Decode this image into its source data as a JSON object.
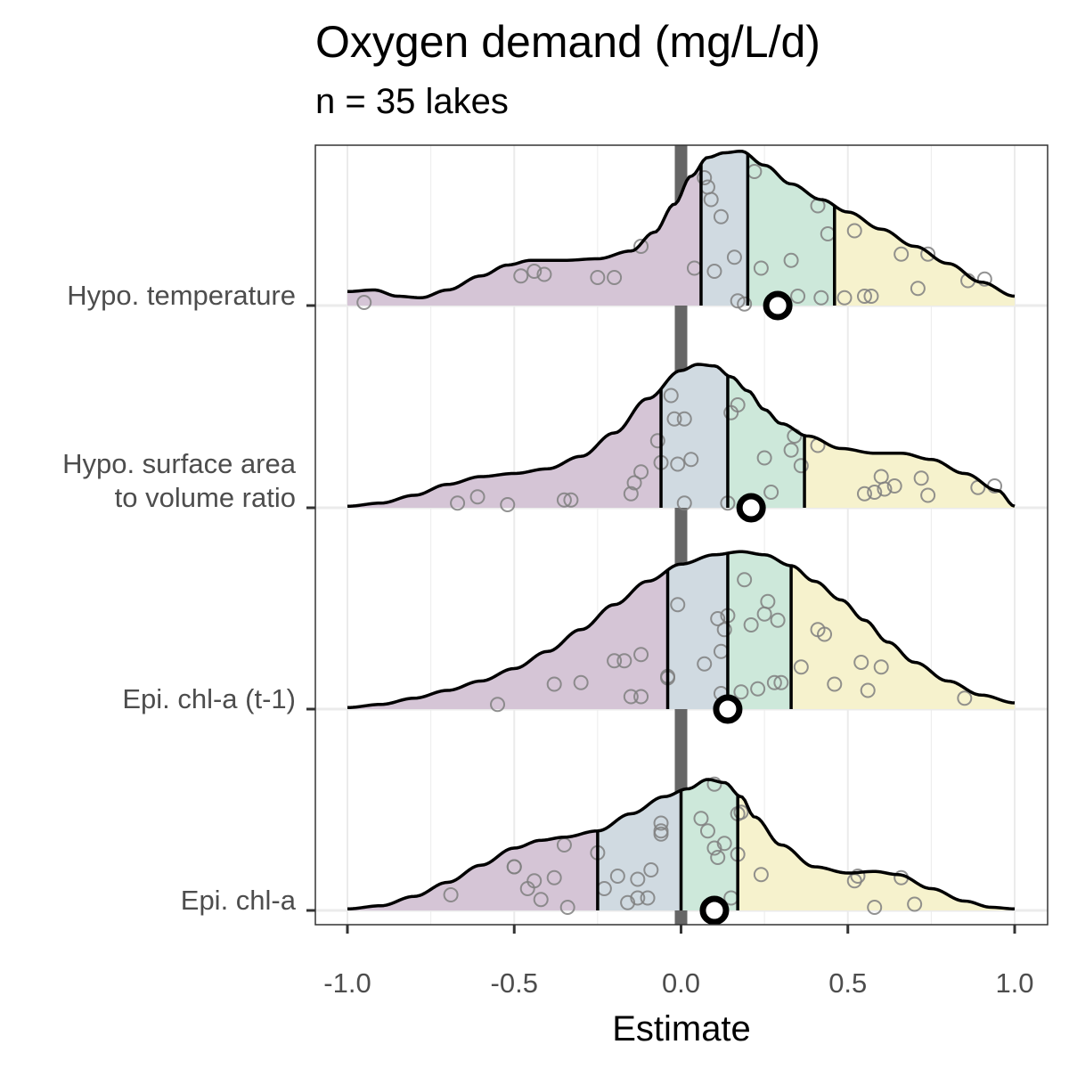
{
  "chart_data": {
    "type": "ridgeline-density",
    "title": "Oxygen demand (mg/L/d)",
    "subtitle": "n = 35 lakes",
    "xlabel": "Estimate",
    "ylabel": "",
    "xlim": [
      -1.0,
      1.0
    ],
    "x_ticks": [
      "-1.0",
      "-0.5",
      "0.0",
      "0.5",
      "1.0"
    ],
    "x_tick_values": [
      -1.0,
      -0.5,
      0.0,
      0.5,
      1.0
    ],
    "reference_line_x": 0.0,
    "grid": true,
    "quantile_colors": [
      "#d5c5d6",
      "#d0dae1",
      "#cde8da",
      "#f6f2cd"
    ],
    "series": [
      {
        "name": "Hypo. temperature",
        "density": [
          [
            -1.0,
            0.09
          ],
          [
            -0.92,
            0.1
          ],
          [
            -0.85,
            0.06
          ],
          [
            -0.78,
            0.05
          ],
          [
            -0.7,
            0.1
          ],
          [
            -0.6,
            0.19
          ],
          [
            -0.52,
            0.26
          ],
          [
            -0.45,
            0.29
          ],
          [
            -0.35,
            0.29
          ],
          [
            -0.25,
            0.3
          ],
          [
            -0.15,
            0.35
          ],
          [
            -0.08,
            0.47
          ],
          [
            -0.02,
            0.65
          ],
          [
            0.03,
            0.83
          ],
          [
            0.08,
            0.95
          ],
          [
            0.13,
            0.98
          ],
          [
            0.18,
            0.99
          ],
          [
            0.25,
            0.9
          ],
          [
            0.33,
            0.78
          ],
          [
            0.42,
            0.68
          ],
          [
            0.5,
            0.6
          ],
          [
            0.6,
            0.49
          ],
          [
            0.7,
            0.38
          ],
          [
            0.8,
            0.27
          ],
          [
            0.9,
            0.15
          ],
          [
            1.0,
            0.06
          ]
        ],
        "quantiles": [
          0.06,
          0.2,
          0.46
        ],
        "estimate": 0.29,
        "points": [
          [
            -0.95,
            0.02
          ],
          [
            -0.48,
            0.19
          ],
          [
            -0.44,
            0.22
          ],
          [
            -0.41,
            0.2
          ],
          [
            -0.25,
            0.18
          ],
          [
            -0.2,
            0.18
          ],
          [
            -0.12,
            0.38
          ],
          [
            0.04,
            0.24
          ],
          [
            0.07,
            0.82
          ],
          [
            0.08,
            0.76
          ],
          [
            0.09,
            0.68
          ],
          [
            0.1,
            0.22
          ],
          [
            0.12,
            0.57
          ],
          [
            0.16,
            0.31
          ],
          [
            0.17,
            0.03
          ],
          [
            0.19,
            0.01
          ],
          [
            0.22,
            0.86
          ],
          [
            0.24,
            0.24
          ],
          [
            0.3,
            0.03
          ],
          [
            0.33,
            0.29
          ],
          [
            0.35,
            0.06
          ],
          [
            0.41,
            0.64
          ],
          [
            0.42,
            0.05
          ],
          [
            0.44,
            0.46
          ],
          [
            0.49,
            0.05
          ],
          [
            0.52,
            0.48
          ],
          [
            0.55,
            0.06
          ],
          [
            0.57,
            0.06
          ],
          [
            0.66,
            0.33
          ],
          [
            0.71,
            0.11
          ],
          [
            0.74,
            0.33
          ],
          [
            0.86,
            0.16
          ],
          [
            0.91,
            0.17
          ]
        ]
      },
      {
        "name": "Hypo. surface area to volume ratio",
        "name_lines": [
          "Hypo. surface area",
          "to volume ratio"
        ],
        "density": [
          [
            -1.0,
            0.01
          ],
          [
            -0.9,
            0.03
          ],
          [
            -0.8,
            0.08
          ],
          [
            -0.7,
            0.15
          ],
          [
            -0.6,
            0.2
          ],
          [
            -0.5,
            0.22
          ],
          [
            -0.4,
            0.25
          ],
          [
            -0.3,
            0.33
          ],
          [
            -0.2,
            0.48
          ],
          [
            -0.1,
            0.7
          ],
          [
            0.0,
            0.88
          ],
          [
            0.05,
            0.92
          ],
          [
            0.1,
            0.91
          ],
          [
            0.15,
            0.84
          ],
          [
            0.2,
            0.75
          ],
          [
            0.25,
            0.63
          ],
          [
            0.3,
            0.54
          ],
          [
            0.38,
            0.46
          ],
          [
            0.48,
            0.38
          ],
          [
            0.58,
            0.35
          ],
          [
            0.66,
            0.35
          ],
          [
            0.75,
            0.31
          ],
          [
            0.85,
            0.22
          ],
          [
            0.95,
            0.11
          ],
          [
            1.0,
            0.01
          ]
        ],
        "quantiles": [
          -0.06,
          0.14,
          0.37
        ],
        "estimate": 0.21,
        "points": [
          [
            -0.67,
            0.03
          ],
          [
            -0.61,
            0.07
          ],
          [
            -0.52,
            0.02
          ],
          [
            -0.35,
            0.05
          ],
          [
            -0.33,
            0.05
          ],
          [
            -0.15,
            0.09
          ],
          [
            -0.14,
            0.16
          ],
          [
            -0.12,
            0.23
          ],
          [
            -0.06,
            0.29
          ],
          [
            -0.07,
            0.43
          ],
          [
            -0.01,
            0.28
          ],
          [
            -0.02,
            0.57
          ],
          [
            0.01,
            0.57
          ],
          [
            -0.03,
            0.72
          ],
          [
            0.01,
            0.03
          ],
          [
            0.03,
            0.31
          ],
          [
            0.14,
            0.03
          ],
          [
            0.15,
            0.61
          ],
          [
            0.17,
            0.66
          ],
          [
            0.25,
            0.32
          ],
          [
            0.27,
            0.1
          ],
          [
            0.33,
            0.37
          ],
          [
            0.34,
            0.46
          ],
          [
            0.36,
            0.27
          ],
          [
            0.41,
            0.4
          ],
          [
            0.55,
            0.09
          ],
          [
            0.58,
            0.1
          ],
          [
            0.6,
            0.2
          ],
          [
            0.61,
            0.12
          ],
          [
            0.64,
            0.14
          ],
          [
            0.72,
            0.19
          ],
          [
            0.74,
            0.08
          ],
          [
            0.89,
            0.13
          ],
          [
            0.94,
            0.14
          ]
        ]
      },
      {
        "name": "Epi. chl-a (t-1)",
        "density": [
          [
            -1.0,
            0.01
          ],
          [
            -0.9,
            0.03
          ],
          [
            -0.8,
            0.07
          ],
          [
            -0.7,
            0.12
          ],
          [
            -0.6,
            0.18
          ],
          [
            -0.5,
            0.26
          ],
          [
            -0.4,
            0.37
          ],
          [
            -0.3,
            0.51
          ],
          [
            -0.2,
            0.67
          ],
          [
            -0.1,
            0.82
          ],
          [
            0.0,
            0.93
          ],
          [
            0.1,
            0.99
          ],
          [
            0.18,
            1.01
          ],
          [
            0.25,
            0.99
          ],
          [
            0.33,
            0.92
          ],
          [
            0.4,
            0.82
          ],
          [
            0.48,
            0.7
          ],
          [
            0.55,
            0.57
          ],
          [
            0.62,
            0.43
          ],
          [
            0.7,
            0.3
          ],
          [
            0.8,
            0.18
          ],
          [
            0.9,
            0.09
          ],
          [
            1.0,
            0.04
          ]
        ],
        "quantiles": [
          -0.04,
          0.14,
          0.33
        ],
        "estimate": 0.14,
        "points": [
          [
            -0.55,
            0.03
          ],
          [
            -0.38,
            0.16
          ],
          [
            -0.3,
            0.17
          ],
          [
            -0.2,
            0.31
          ],
          [
            -0.17,
            0.31
          ],
          [
            -0.15,
            0.08
          ],
          [
            -0.12,
            0.35
          ],
          [
            -0.12,
            0.08
          ],
          [
            -0.04,
            0.21
          ],
          [
            -0.04,
            0.2
          ],
          [
            -0.01,
            0.67
          ],
          [
            0.07,
            0.29
          ],
          [
            0.11,
            0.58
          ],
          [
            0.12,
            0.1
          ],
          [
            0.12,
            0.37
          ],
          [
            0.13,
            0.51
          ],
          [
            0.14,
            0.6
          ],
          [
            0.18,
            0.11
          ],
          [
            0.19,
            0.83
          ],
          [
            0.21,
            0.54
          ],
          [
            0.23,
            0.13
          ],
          [
            0.25,
            0.61
          ],
          [
            0.26,
            0.69
          ],
          [
            0.28,
            0.17
          ],
          [
            0.29,
            0.57
          ],
          [
            0.3,
            0.17
          ],
          [
            0.36,
            0.27
          ],
          [
            0.41,
            0.51
          ],
          [
            0.43,
            0.48
          ],
          [
            0.46,
            0.16
          ],
          [
            0.54,
            0.3
          ],
          [
            0.56,
            0.12
          ],
          [
            0.6,
            0.27
          ],
          [
            0.85,
            0.07
          ]
        ]
      },
      {
        "name": "Epi. chl-a",
        "density": [
          [
            -1.0,
            0.01
          ],
          [
            -0.9,
            0.03
          ],
          [
            -0.8,
            0.09
          ],
          [
            -0.7,
            0.18
          ],
          [
            -0.6,
            0.29
          ],
          [
            -0.5,
            0.4
          ],
          [
            -0.42,
            0.45
          ],
          [
            -0.35,
            0.47
          ],
          [
            -0.25,
            0.51
          ],
          [
            -0.15,
            0.62
          ],
          [
            -0.05,
            0.73
          ],
          [
            0.02,
            0.78
          ],
          [
            0.08,
            0.84
          ],
          [
            0.13,
            0.82
          ],
          [
            0.18,
            0.73
          ],
          [
            0.22,
            0.6
          ],
          [
            0.3,
            0.42
          ],
          [
            0.4,
            0.28
          ],
          [
            0.5,
            0.24
          ],
          [
            0.58,
            0.25
          ],
          [
            0.65,
            0.23
          ],
          [
            0.75,
            0.14
          ],
          [
            0.85,
            0.06
          ],
          [
            0.93,
            0.02
          ],
          [
            1.0,
            0.01
          ]
        ],
        "quantiles": [
          -0.25,
          0.0,
          0.17
        ],
        "estimate": 0.1,
        "points": [
          [
            -0.69,
            0.1
          ],
          [
            -0.5,
            0.28
          ],
          [
            -0.5,
            0.28
          ],
          [
            -0.46,
            0.14
          ],
          [
            -0.44,
            0.19
          ],
          [
            -0.42,
            0.07
          ],
          [
            -0.38,
            0.21
          ],
          [
            -0.35,
            0.42
          ],
          [
            -0.34,
            0.02
          ],
          [
            -0.25,
            0.37
          ],
          [
            -0.23,
            0.14
          ],
          [
            -0.19,
            0.22
          ],
          [
            -0.16,
            0.05
          ],
          [
            -0.13,
            0.08
          ],
          [
            -0.13,
            0.2
          ],
          [
            -0.1,
            0.08
          ],
          [
            -0.09,
            0.26
          ],
          [
            -0.06,
            0.56
          ],
          [
            -0.06,
            0.49
          ],
          [
            -0.06,
            0.51
          ],
          [
            0.06,
            0.59
          ],
          [
            0.08,
            0.51
          ],
          [
            0.1,
            0.81
          ],
          [
            0.1,
            0.4
          ],
          [
            0.11,
            0.34
          ],
          [
            0.13,
            0.43
          ],
          [
            0.15,
            0.08
          ],
          [
            0.17,
            0.36
          ],
          [
            0.17,
            0.62
          ],
          [
            0.18,
            0.63
          ],
          [
            0.24,
            0.23
          ],
          [
            0.52,
            0.19
          ],
          [
            0.53,
            0.22
          ],
          [
            0.58,
            0.02
          ],
          [
            0.66,
            0.21
          ],
          [
            0.7,
            0.04
          ]
        ]
      }
    ]
  }
}
